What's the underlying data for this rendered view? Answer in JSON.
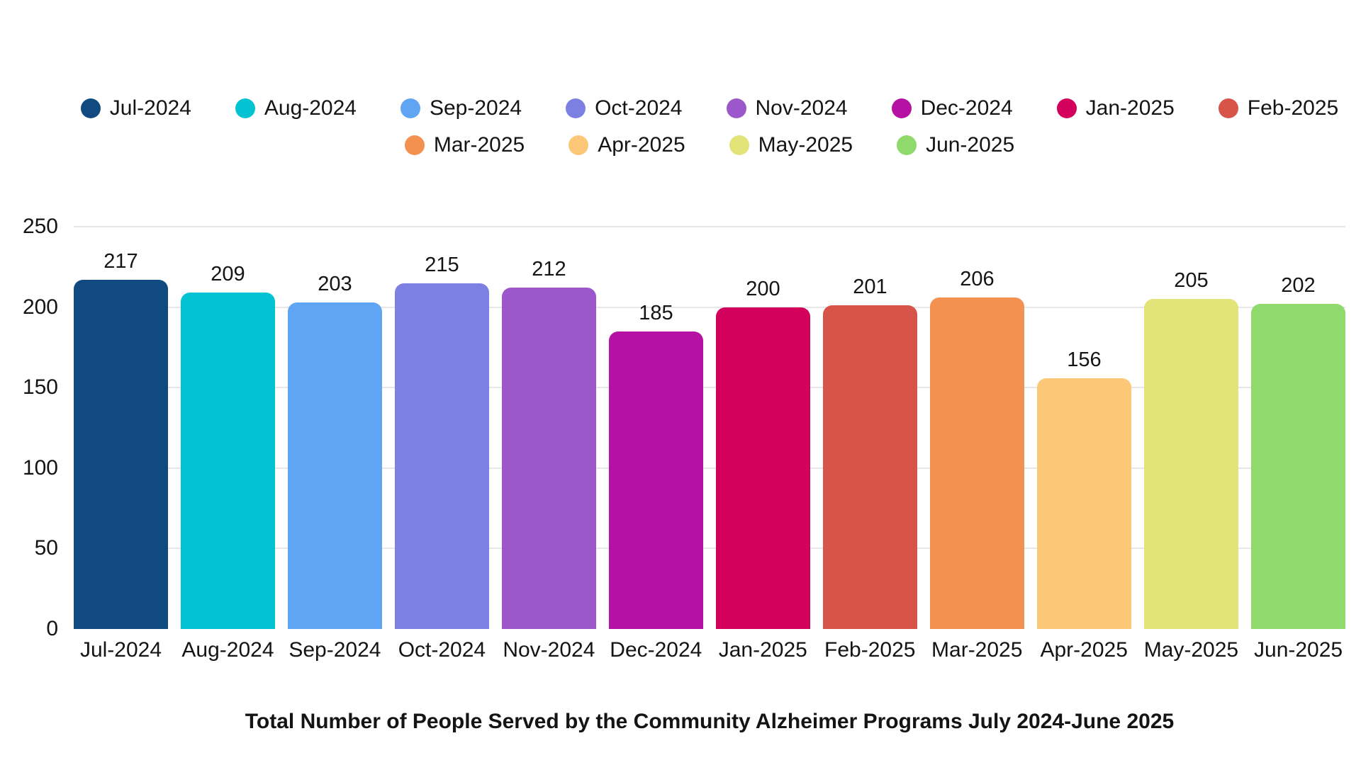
{
  "chart_data": {
    "type": "bar",
    "title": "Total Number of People Served by the Community Alzheimer Programs July 2024-June 2025",
    "xlabel": "",
    "ylabel": "",
    "categories": [
      "Jul-2024",
      "Aug-2024",
      "Sep-2024",
      "Oct-2024",
      "Nov-2024",
      "Dec-2024",
      "Jan-2025",
      "Feb-2025",
      "Mar-2025",
      "Apr-2025",
      "May-2025",
      "Jun-2025"
    ],
    "values": [
      217,
      209,
      203,
      215,
      212,
      185,
      200,
      201,
      206,
      156,
      205,
      202
    ],
    "colors": [
      "#114a80",
      "#03c3d3",
      "#60a4f4",
      "#7c80e2",
      "#9c57ca",
      "#b512a4",
      "#d3005c",
      "#d6544a",
      "#f39250",
      "#fcc877",
      "#e2e378",
      "#90d96d"
    ],
    "ylim": [
      0,
      250
    ],
    "yticks": [
      0,
      50,
      100,
      150,
      200,
      250
    ],
    "grid": true,
    "legend_position": "top",
    "legend_rows": [
      8,
      4
    ]
  },
  "style": {
    "background": "#ffffff",
    "gridline_color": "#e7e7e7",
    "text_color": "#141414"
  }
}
